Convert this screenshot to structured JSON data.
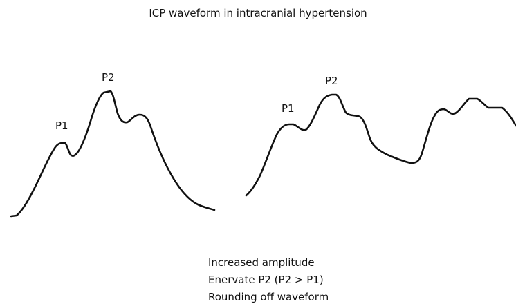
{
  "title": "ICP waveform in intracranial hypertension",
  "waveforms": [
    {
      "labels": [
        "P1",
        "P2"
      ]
    },
    {
      "labels": [
        "P1",
        "P2"
      ]
    }
  ],
  "notes": [
    "Increased amplitude",
    "Enervate P2 (P2 > P1)",
    "Rounding off waveform"
  ]
}
